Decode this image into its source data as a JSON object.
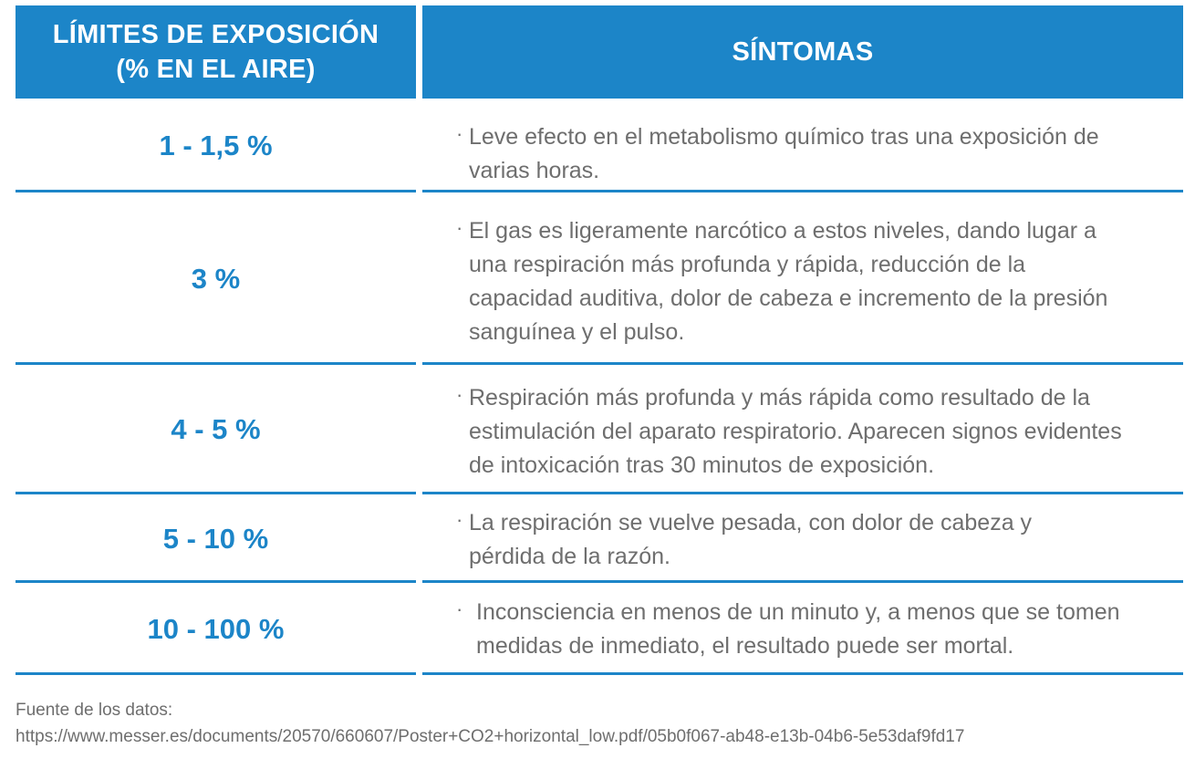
{
  "header": {
    "limits_line1": "LÍMITES DE EXPOSICIÓN",
    "limits_line2": "(% EN EL AIRE)",
    "symptoms": "SÍNTOMAS"
  },
  "rows": [
    {
      "limit": "1 - 1,5 %",
      "symptoms": "Leve efecto en el metabolismo químico tras una exposición de varias horas."
    },
    {
      "limit": "3 %",
      "symptoms": "El gas es ligeramente narcótico a estos niveles, dando lugar a una respiración más profunda y rápida, reducción de la capacidad auditiva, dolor de cabeza e incremento de la presión sanguínea y el pulso."
    },
    {
      "limit": "4 - 5 %",
      "symptoms": "Respiración más profunda y más rápida como resultado de la estimulación del aparato respiratorio. Aparecen signos evidentes de intoxicación tras 30 minutos de exposición."
    },
    {
      "limit": "5 - 10 %",
      "symptoms": "La respiración se vuelve pesada, con dolor de cabeza y pérdida de la razón."
    },
    {
      "limit": "10 - 100 %",
      "symptoms": "Inconsciencia en menos de un minuto y, a menos que se tomen medidas de inmediato, el resultado puede ser mortal."
    }
  ],
  "bullet": "·",
  "footer": {
    "label": "Fuente de los datos:",
    "url": "https://www.messer.es/documents/20570/660607/Poster+CO2+horizontal_low.pdf/05b0f067-ab48-e13b-04b6-5e53daf9fd17"
  }
}
